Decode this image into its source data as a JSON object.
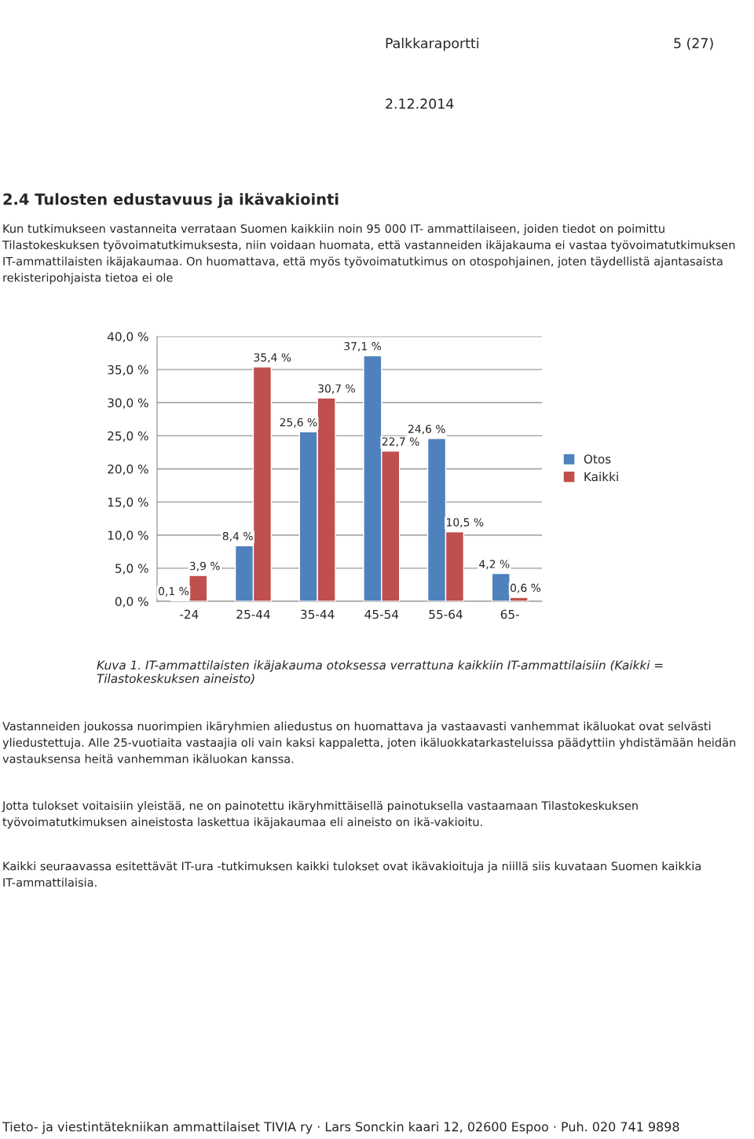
{
  "chart_data": {
    "type": "bar",
    "title": "2.4 Tulosten edustavuus ja ikävakiointi",
    "subtitle": "Kun tutkimukseen vastanneita verrataan Suomen kaikkiin noin 95 000 IT- ammattilaiseen, joiden tiedot on poimittu Tilastokeskuksen työvoimatutkimuksesta, niin voidaan huomata, että vastanneiden ikäjakauma ei vastaa työvoimatutkimuksen IT-ammattilaisten ikäjakaumaa. On huomattava, että myös työvoimatutkimus on otospohjainen, joten täydellistä ajantasaista rekisteripohjaista tietoa ei ole",
    "categories": [
      "-24",
      "25-44",
      "35-44",
      "45-54",
      "55-64",
      "65-"
    ],
    "series": [
      {
        "name": "Otos",
        "color": "#4f81bd",
        "values": [
          0.1,
          8.4,
          25.6,
          37.1,
          24.6,
          4.2
        ],
        "value_labels": [
          "0,1 %",
          "8,4 %",
          "25,6 %",
          "37,1 %",
          "24,6 %",
          "4,2 %"
        ]
      },
      {
        "name": "Kaikki",
        "color": "#c0504d",
        "values": [
          3.9,
          35.4,
          30.7,
          22.7,
          10.5,
          0.6
        ],
        "value_labels": [
          "3,9 %",
          "35,4 %",
          "30,7 %",
          "22,7 %",
          "10,5 %",
          "0,6 %"
        ]
      }
    ],
    "ylim": [
      0,
      40
    ],
    "yticks": [
      {
        "value": 0,
        "label": "0,0 %"
      },
      {
        "value": 5,
        "label": "5,0 %"
      },
      {
        "value": 10,
        "label": "10,0 %"
      },
      {
        "value": 15,
        "label": "15,0 %"
      },
      {
        "value": 20,
        "label": "20,0 %"
      },
      {
        "value": 25,
        "label": "25,0 %"
      },
      {
        "value": 30,
        "label": "30,0 %"
      },
      {
        "value": 35,
        "label": "35,0 %"
      },
      {
        "value": 40,
        "label": "40,0 %"
      }
    ],
    "grid": "y",
    "legend": "right",
    "annotations": [
      "Palkkaraportti",
      "5 (27)",
      "2.12.2014",
      "Kuva 1. IT-ammattilaisten ikäjakauma otoksessa verrattuna kaikkiin IT-ammattilaisiin (Kaikki = Tilastokeskuksen aineisto)",
      "Vastanneiden joukossa nuorimpien ikäryhmien aliedustus on huomattava ja vastaavasti vanhemmat ikäluokat ovat selvästi yliedustettuja. Alle 25-vuotiaita vastaajia oli vain kaksi kappaletta, joten ikäluokkatarkasteluissa päädyttiin yhdistämään heidän vastauksensa heitä vanhemman ikäluokan kanssa.",
      "Jotta tulokset voitaisiin yleistää, ne on painotettu ikäryhmittäisellä painotuksella vastaamaan Tilastokeskuksen työvoimatutkimuksen aineistosta laskettua ikäjakaumaa eli aineisto on ikä-vakioitu.",
      "Kaikki seuraavassa esitettävät IT-ura -tutkimuksen kaikki tulokset ovat ikävakioituja ja niillä siis kuvataan Suomen kaikkia IT-ammattilaisia.",
      "Tieto- ja viestintätekniikan ammattilaiset TIVIA ry · Lars Sonckin kaari 12, 02600 Espoo · Puh. 020 741 9898"
    ]
  }
}
